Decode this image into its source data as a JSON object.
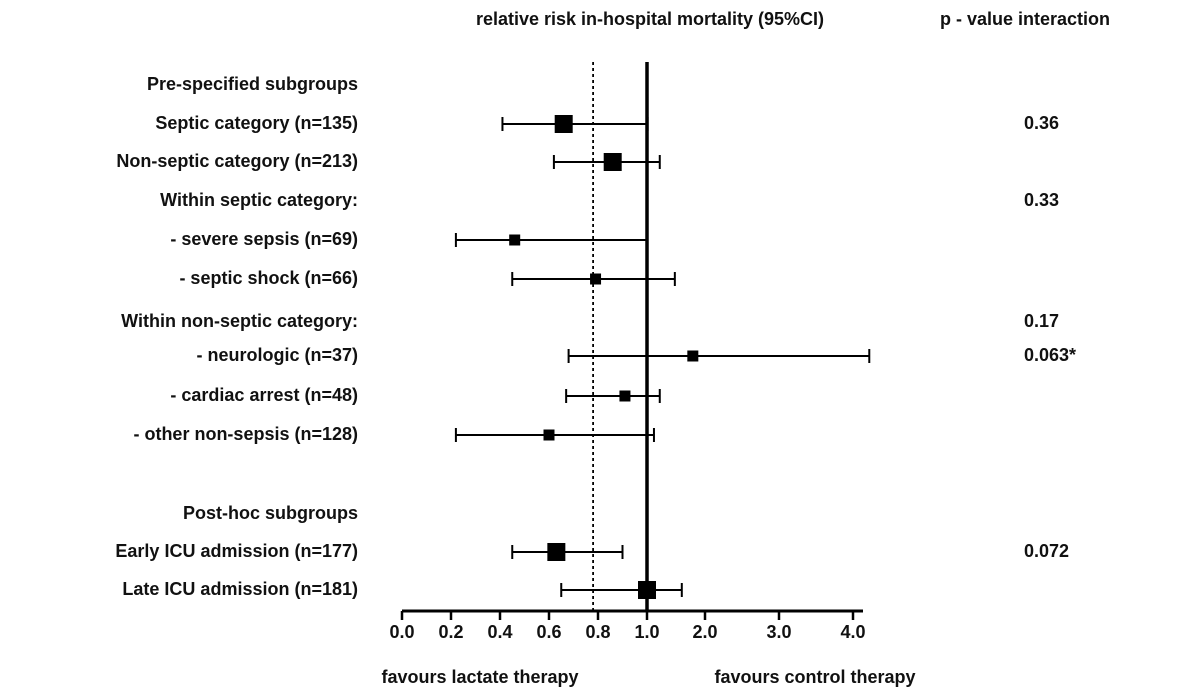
{
  "chart_data": {
    "type": "forest",
    "xlabel": "relative risk in-hospital mortality  (95%CI)",
    "p_header": "p - value interaction",
    "left_note": "favours lactate therapy",
    "right_note": "favours control therapy",
    "categories": [
      "Pre-specified subgroups",
      "Septic category (n=135)",
      "Non-septic category (n=213)",
      "Within septic category:",
      "- severe sepsis (n=69)",
      "- septic shock (n=66)",
      "Within non-septic category:",
      "- neurologic (n=37)",
      "- cardiac arrest (n=48)",
      "- other non-sepsis (n=128)",
      null,
      "Post-hoc subgroups",
      "Early ICU admission (n=177)",
      "Late ICU admission (n=181)"
    ],
    "values": [
      null,
      0.66,
      0.86,
      null,
      0.46,
      0.79,
      null,
      1.79,
      0.91,
      0.6,
      null,
      null,
      0.63,
      1.0
    ],
    "lower": [
      null,
      0.41,
      0.62,
      null,
      0.22,
      0.45,
      null,
      0.68,
      0.67,
      0.22,
      null,
      null,
      0.45,
      0.65
    ],
    "upper": [
      null,
      1.01,
      1.22,
      null,
      1.0,
      1.48,
      null,
      4.22,
      1.22,
      1.12,
      null,
      null,
      0.9,
      1.6
    ],
    "p_values": [
      null,
      "0.36",
      null,
      "0.33",
      null,
      null,
      "0.17",
      "0.063*",
      null,
      null,
      null,
      null,
      "0.072",
      null
    ],
    "xticks": [
      {
        "value": 0,
        "label": "0.0"
      },
      {
        "value": 0.2,
        "label": "0.2"
      },
      {
        "value": 0.4,
        "label": "0.4"
      },
      {
        "value": 0.6,
        "label": "0.6"
      },
      {
        "value": 0.8,
        "label": "0.8"
      },
      {
        "value": 1,
        "label": "1.0"
      },
      {
        "value": 2,
        "label": "2.0"
      },
      {
        "value": 3,
        "label": "3.0"
      },
      {
        "value": 4,
        "label": "4.0"
      }
    ],
    "reference_lines": [
      {
        "value": 1,
        "style": "solid"
      },
      {
        "value": 0.78,
        "style": "dotted"
      }
    ],
    "color": "#000000"
  }
}
